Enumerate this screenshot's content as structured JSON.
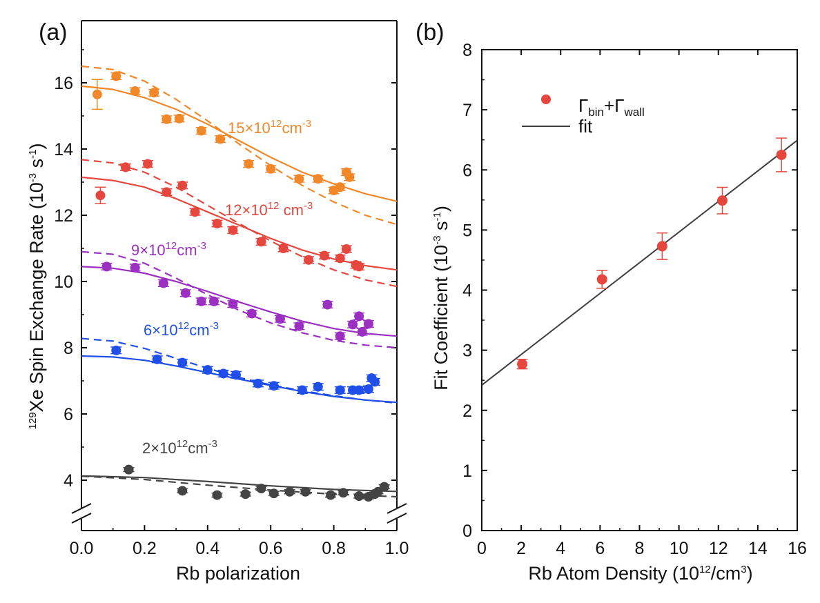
{
  "colors": {
    "orange": "#f0882a",
    "red": "#e5473f",
    "purple": "#9b2fc2",
    "blue": "#1f4fe8",
    "gray": "#444444",
    "fit_line": "#3d3d3d",
    "axis": "#111111"
  },
  "chart_data": [
    {
      "panel_label": "(a)",
      "type": "scatter",
      "xlabel": "Rb polarization",
      "ylabel_sup": "129",
      "ylabel_main": "Xe Spin Exchange Rate (10",
      "ylabel_exp1": "-3",
      "ylabel_mid": " s",
      "ylabel_exp2": "-1",
      "ylabel_end": ")",
      "xlim": [
        0.0,
        1.0
      ],
      "ylim": [
        3.0,
        16.8
      ],
      "axis_break": true,
      "xticks": [
        "0.0",
        "0.2",
        "0.4",
        "0.6",
        "0.8",
        "1.0"
      ],
      "xtick_values": [
        0.0,
        0.2,
        0.4,
        0.6,
        0.8,
        1.0
      ],
      "yticks": [
        "4",
        "6",
        "8",
        "10",
        "12",
        "14",
        "16"
      ],
      "ytick_values": [
        4,
        6,
        8,
        10,
        12,
        14,
        16
      ],
      "series": [
        {
          "label_main": "15×10",
          "label_exp": "12",
          "label_unit": "cm",
          "label_unit_exp": "-3",
          "color": "#f0882a",
          "points": [
            [
              0.05,
              15.65
            ],
            [
              0.11,
              16.2
            ],
            [
              0.17,
              15.75
            ],
            [
              0.23,
              15.7
            ],
            [
              0.27,
              14.9
            ],
            [
              0.31,
              14.92
            ],
            [
              0.38,
              14.55
            ],
            [
              0.44,
              14.3
            ],
            [
              0.53,
              13.55
            ],
            [
              0.6,
              13.4
            ],
            [
              0.69,
              13.1
            ],
            [
              0.75,
              13.1
            ],
            [
              0.8,
              12.75
            ],
            [
              0.82,
              12.85
            ],
            [
              0.84,
              13.3
            ],
            [
              0.85,
              13.15
            ]
          ],
          "err": [
            0.45,
            0.1,
            0.1,
            0.1,
            0.1,
            0.1,
            0.1,
            0.1,
            0.1,
            0.1,
            0.1,
            0.1,
            0.1,
            0.1,
            0.1,
            0.1
          ],
          "solid": [
            [
              0,
              15.9
            ],
            [
              0.1,
              15.8
            ],
            [
              0.2,
              15.55
            ],
            [
              0.3,
              15.2
            ],
            [
              0.4,
              14.75
            ],
            [
              0.5,
              14.25
            ],
            [
              0.6,
              13.75
            ],
            [
              0.7,
              13.3
            ],
            [
              0.8,
              12.95
            ],
            [
              0.9,
              12.65
            ],
            [
              1.0,
              12.42
            ]
          ],
          "dashed": [
            [
              0,
              16.5
            ],
            [
              0.1,
              16.4
            ],
            [
              0.2,
              16.05
            ],
            [
              0.3,
              15.5
            ],
            [
              0.4,
              14.85
            ],
            [
              0.5,
              14.15
            ],
            [
              0.6,
              13.5
            ],
            [
              0.7,
              12.9
            ],
            [
              0.8,
              12.4
            ],
            [
              0.9,
              12.0
            ],
            [
              1.0,
              11.72
            ]
          ]
        },
        {
          "label_main": "12×10",
          "label_exp": "12",
          "label_unit": " cm",
          "label_unit_exp": "-3",
          "color": "#e5473f",
          "points": [
            [
              0.06,
              12.6
            ],
            [
              0.14,
              13.45
            ],
            [
              0.21,
              13.55
            ],
            [
              0.27,
              12.7
            ],
            [
              0.32,
              12.9
            ],
            [
              0.36,
              12.1
            ],
            [
              0.43,
              11.75
            ],
            [
              0.48,
              11.55
            ],
            [
              0.57,
              11.2
            ],
            [
              0.64,
              11.0
            ],
            [
              0.72,
              10.65
            ],
            [
              0.77,
              10.78
            ],
            [
              0.82,
              10.7
            ],
            [
              0.84,
              10.98
            ],
            [
              0.87,
              10.5
            ],
            [
              0.88,
              10.45
            ]
          ],
          "err": [
            0.25,
            0.1,
            0.1,
            0.1,
            0.1,
            0.1,
            0.1,
            0.1,
            0.1,
            0.1,
            0.1,
            0.1,
            0.1,
            0.1,
            0.1,
            0.1
          ],
          "solid": [
            [
              0,
              13.15
            ],
            [
              0.1,
              13.05
            ],
            [
              0.2,
              12.85
            ],
            [
              0.3,
              12.5
            ],
            [
              0.4,
              12.1
            ],
            [
              0.5,
              11.7
            ],
            [
              0.6,
              11.3
            ],
            [
              0.7,
              10.95
            ],
            [
              0.8,
              10.68
            ],
            [
              0.9,
              10.48
            ],
            [
              1.0,
              10.35
            ]
          ],
          "dashed": [
            [
              0,
              13.68
            ],
            [
              0.1,
              13.58
            ],
            [
              0.2,
              13.3
            ],
            [
              0.3,
              12.85
            ],
            [
              0.4,
              12.3
            ],
            [
              0.5,
              11.75
            ],
            [
              0.6,
              11.22
            ],
            [
              0.7,
              10.75
            ],
            [
              0.8,
              10.35
            ],
            [
              0.9,
              10.05
            ],
            [
              1.0,
              9.85
            ]
          ]
        },
        {
          "label_main": "9×10",
          "label_exp": "12",
          "label_unit": "cm",
          "label_unit_exp": "-3",
          "color": "#9b2fc2",
          "points": [
            [
              0.08,
              10.45
            ],
            [
              0.17,
              10.42
            ],
            [
              0.26,
              9.95
            ],
            [
              0.33,
              9.65
            ],
            [
              0.38,
              9.4
            ],
            [
              0.42,
              9.4
            ],
            [
              0.48,
              9.32
            ],
            [
              0.54,
              9.03
            ],
            [
              0.63,
              8.87
            ],
            [
              0.69,
              8.65
            ],
            [
              0.78,
              9.3
            ],
            [
              0.82,
              8.35
            ],
            [
              0.86,
              8.7
            ],
            [
              0.88,
              8.95
            ],
            [
              0.89,
              8.48
            ],
            [
              0.91,
              8.72
            ]
          ],
          "err": [
            0.1,
            0.1,
            0.1,
            0.1,
            0.1,
            0.1,
            0.1,
            0.1,
            0.1,
            0.1,
            0.1,
            0.1,
            0.1,
            0.1,
            0.1,
            0.1
          ],
          "solid": [
            [
              0,
              10.45
            ],
            [
              0.1,
              10.4
            ],
            [
              0.2,
              10.25
            ],
            [
              0.3,
              10.0
            ],
            [
              0.4,
              9.7
            ],
            [
              0.5,
              9.38
            ],
            [
              0.6,
              9.08
            ],
            [
              0.7,
              8.8
            ],
            [
              0.8,
              8.58
            ],
            [
              0.9,
              8.43
            ],
            [
              1.0,
              8.35
            ]
          ],
          "dashed": [
            [
              0,
              10.9
            ],
            [
              0.1,
              10.82
            ],
            [
              0.2,
              10.55
            ],
            [
              0.3,
              10.1
            ],
            [
              0.4,
              9.6
            ],
            [
              0.5,
              9.13
            ],
            [
              0.6,
              8.75
            ],
            [
              0.7,
              8.45
            ],
            [
              0.8,
              8.22
            ],
            [
              0.9,
              8.08
            ],
            [
              1.0,
              8.0
            ]
          ]
        },
        {
          "label_main": "6×10",
          "label_exp": "12",
          "label_unit": "cm",
          "label_unit_exp": "-3",
          "color": "#1f4fe8",
          "points": [
            [
              0.11,
              7.92
            ],
            [
              0.24,
              7.65
            ],
            [
              0.32,
              7.55
            ],
            [
              0.4,
              7.33
            ],
            [
              0.45,
              7.22
            ],
            [
              0.49,
              7.18
            ],
            [
              0.56,
              6.92
            ],
            [
              0.61,
              6.85
            ],
            [
              0.7,
              6.72
            ],
            [
              0.75,
              6.82
            ],
            [
              0.82,
              6.72
            ],
            [
              0.86,
              6.72
            ],
            [
              0.88,
              6.72
            ],
            [
              0.91,
              6.75
            ],
            [
              0.92,
              7.08
            ],
            [
              0.93,
              6.97
            ]
          ],
          "err": [
            0.1,
            0.1,
            0.1,
            0.1,
            0.1,
            0.1,
            0.1,
            0.1,
            0.1,
            0.1,
            0.1,
            0.1,
            0.1,
            0.1,
            0.1,
            0.1
          ],
          "solid": [
            [
              0,
              7.75
            ],
            [
              0.1,
              7.72
            ],
            [
              0.2,
              7.62
            ],
            [
              0.3,
              7.45
            ],
            [
              0.4,
              7.25
            ],
            [
              0.5,
              7.05
            ],
            [
              0.6,
              6.86
            ],
            [
              0.7,
              6.68
            ],
            [
              0.8,
              6.53
            ],
            [
              0.9,
              6.42
            ],
            [
              1.0,
              6.35
            ]
          ],
          "dashed": [
            [
              0,
              8.28
            ],
            [
              0.1,
              8.2
            ],
            [
              0.2,
              7.98
            ],
            [
              0.3,
              7.68
            ],
            [
              0.4,
              7.38
            ],
            [
              0.5,
              7.1
            ],
            [
              0.6,
              6.88
            ],
            [
              0.7,
              6.7
            ],
            [
              0.8,
              6.55
            ],
            [
              0.9,
              6.42
            ],
            [
              1.0,
              6.33
            ]
          ]
        },
        {
          "label_main": "2×10",
          "label_exp": "12",
          "label_unit": "cm",
          "label_unit_exp": "-3",
          "color": "#444444",
          "points": [
            [
              0.15,
              4.32
            ],
            [
              0.32,
              3.68
            ],
            [
              0.43,
              3.55
            ],
            [
              0.52,
              3.58
            ],
            [
              0.57,
              3.75
            ],
            [
              0.61,
              3.6
            ],
            [
              0.66,
              3.65
            ],
            [
              0.71,
              3.65
            ],
            [
              0.79,
              3.55
            ],
            [
              0.83,
              3.62
            ],
            [
              0.88,
              3.52
            ],
            [
              0.91,
              3.5
            ],
            [
              0.93,
              3.58
            ],
            [
              0.94,
              3.65
            ],
            [
              0.96,
              3.8
            ]
          ],
          "err": [
            0.06,
            0.06,
            0.06,
            0.06,
            0.06,
            0.06,
            0.06,
            0.06,
            0.06,
            0.06,
            0.06,
            0.06,
            0.06,
            0.06,
            0.06
          ],
          "solid": [
            [
              0,
              4.13
            ],
            [
              0.2,
              4.08
            ],
            [
              0.4,
              3.96
            ],
            [
              0.6,
              3.83
            ],
            [
              0.8,
              3.72
            ],
            [
              1.0,
              3.66
            ]
          ],
          "dashed": [
            [
              0,
              4.12
            ],
            [
              0.2,
              4.02
            ],
            [
              0.4,
              3.85
            ],
            [
              0.6,
              3.7
            ],
            [
              0.8,
              3.58
            ],
            [
              1.0,
              3.5
            ]
          ]
        }
      ]
    },
    {
      "panel_label": "(b)",
      "type": "scatter",
      "xlabel_main": "Rb Atom Density (10",
      "xlabel_exp": "12",
      "xlabel_end": "/cm",
      "xlabel_exp2": "3",
      "xlabel_close": ")",
      "ylabel_main": "Fit Coefficient (10",
      "ylabel_exp1": "-3",
      "ylabel_mid": " s",
      "ylabel_exp2": "-1",
      "ylabel_end": ")",
      "xlim": [
        0,
        16
      ],
      "ylim": [
        0,
        8
      ],
      "xticks": [
        "0",
        "2",
        "4",
        "6",
        "8",
        "10",
        "12",
        "14",
        "16"
      ],
      "xtick_values": [
        0,
        2,
        4,
        6,
        8,
        10,
        12,
        14,
        16
      ],
      "yticks": [
        "0",
        "1",
        "2",
        "3",
        "4",
        "5",
        "6",
        "7",
        "8"
      ],
      "ytick_values": [
        0,
        1,
        2,
        3,
        4,
        5,
        6,
        7,
        8
      ],
      "legend_position": "top-left",
      "legend": {
        "points_label": "Γ",
        "points_sub1": "bin",
        "points_plus": "+Γ",
        "points_sub2": "wall",
        "line_label": "fit"
      },
      "points": [
        [
          2.05,
          2.77
        ],
        [
          6.1,
          4.18
        ],
        [
          9.15,
          4.73
        ],
        [
          12.2,
          5.49
        ],
        [
          15.2,
          6.25
        ]
      ],
      "err": [
        0.08,
        0.15,
        0.22,
        0.22,
        0.28
      ],
      "fit": {
        "intercept": 2.42,
        "slope": 0.2545
      }
    }
  ]
}
